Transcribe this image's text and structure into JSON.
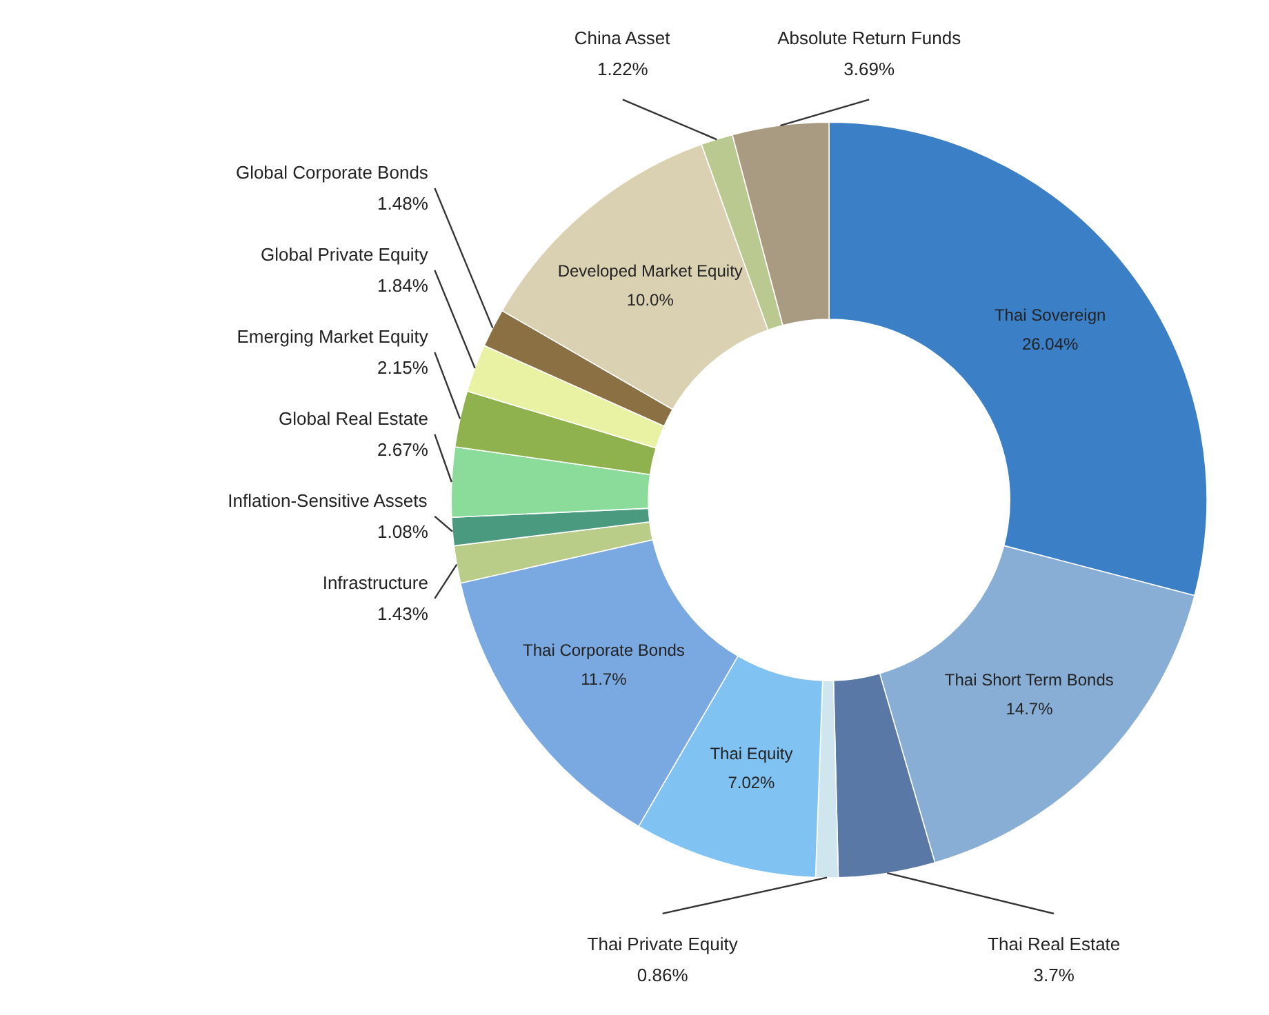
{
  "chart_data": {
    "type": "donut",
    "categories": [
      "Thai Sovereign",
      "Thai Short Term Bonds",
      "Thai Real Estate",
      "Thai Private Equity",
      "Thai Equity",
      "Thai Corporate Bonds",
      "Infrastructure",
      "Inflation-Sensitive Assets",
      "Global Real Estate",
      "Emerging Market Equity",
      "Global Private Equity",
      "Global Corporate Bonds",
      "Developed Market Equity",
      "China Asset",
      "Absolute Return Funds"
    ],
    "values": [
      26.04,
      14.7,
      3.7,
      0.86,
      7.02,
      11.7,
      1.43,
      1.08,
      2.67,
      2.15,
      1.84,
      1.48,
      10.0,
      1.22,
      3.69
    ],
    "value_labels": [
      "26.04%",
      "14.7%",
      "3.7%",
      "0.86%",
      "7.02%",
      "11.7%",
      "1.43%",
      "1.08%",
      "2.67%",
      "2.15%",
      "1.84%",
      "1.48%",
      "10.0%",
      "1.22%",
      "3.69%"
    ],
    "colors": [
      "#3b80c6",
      "#88aed6",
      "#5a78a6",
      "#cfe6ee",
      "#80c2f2",
      "#7aa9e2",
      "#b9cc88",
      "#4a9a80",
      "#8bdc9a",
      "#8fb24f",
      "#e9f1a2",
      "#8a7042",
      "#d9d1b2",
      "#b9c98f",
      "#a99a82"
    ]
  }
}
